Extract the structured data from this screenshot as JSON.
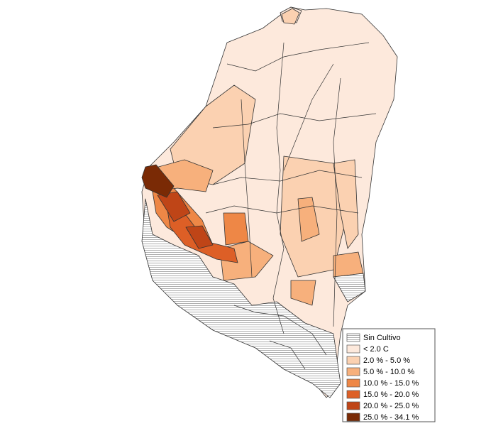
{
  "legend": {
    "items": [
      {
        "label": "Sin Cultivo",
        "color": "#ffffff",
        "pattern": "hatch"
      },
      {
        "label": "< 2.0 C",
        "color": "#fde9dc"
      },
      {
        "label": "2.0 % - 5.0 %",
        "color": "#fbd1b1"
      },
      {
        "label": "5.0 % - 10.0 %",
        "color": "#f7b07c"
      },
      {
        "label": "10.0 % - 15.0 %",
        "color": "#ee8746"
      },
      {
        "label": "15.0 % - 20.0 %",
        "color": "#dd5f26"
      },
      {
        "label": "20.0 % - 25.0 %",
        "color": "#bf4517"
      },
      {
        "label": "25.0 % - 34.1 %",
        "color": "#7a2a05"
      }
    ]
  }
}
